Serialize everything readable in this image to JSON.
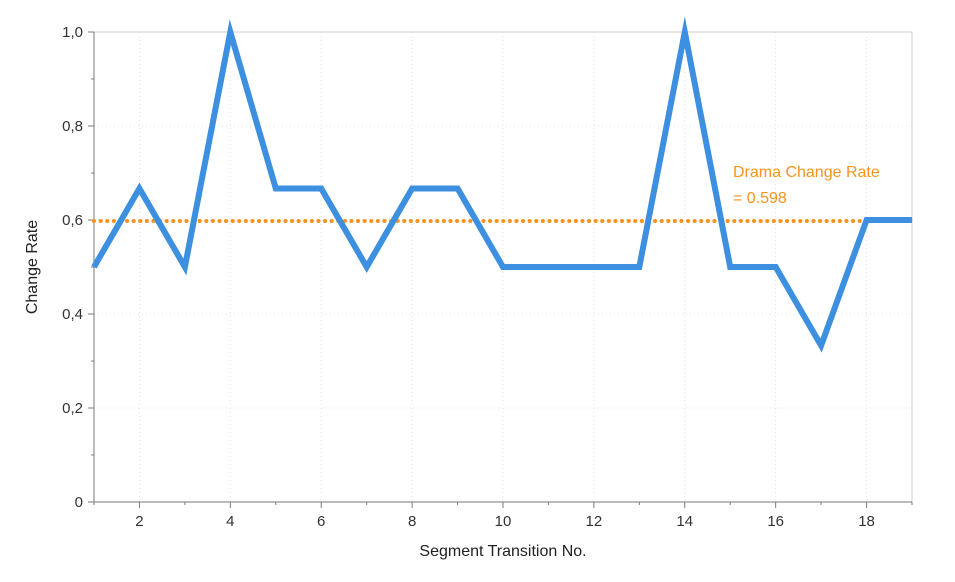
{
  "chart_data": {
    "type": "line",
    "xlabel": "Segment Transition No.",
    "ylabel": "Change Rate",
    "xlim": [
      1,
      19
    ],
    "ylim": [
      0,
      1
    ],
    "x_ticks": [
      2,
      4,
      6,
      8,
      10,
      12,
      14,
      16,
      18
    ],
    "y_ticks": [
      0,
      0.2,
      0.4,
      0.6,
      0.8,
      1.0
    ],
    "y_tick_labels": [
      "0",
      "0,2",
      "0,4",
      "0,6",
      "0,8",
      "1,0"
    ],
    "grid": true,
    "series": [
      {
        "x": [
          1,
          2,
          3,
          4,
          5,
          6,
          7,
          8,
          9,
          10,
          11,
          12,
          13,
          14,
          15,
          16,
          17,
          18,
          19
        ],
        "values": [
          0.5,
          0.667,
          0.5,
          1.0,
          0.667,
          0.667,
          0.5,
          0.667,
          0.667,
          0.5,
          0.5,
          0.5,
          0.5,
          1.0,
          0.5,
          0.5,
          0.333,
          0.6,
          0.6
        ],
        "color": "#3d8fe0"
      }
    ],
    "reference_line": {
      "value": 0.598,
      "style": "dotted",
      "color": "#f7931e",
      "label_line1": "Drama Change Rate",
      "label_line2": "= 0.598"
    }
  }
}
